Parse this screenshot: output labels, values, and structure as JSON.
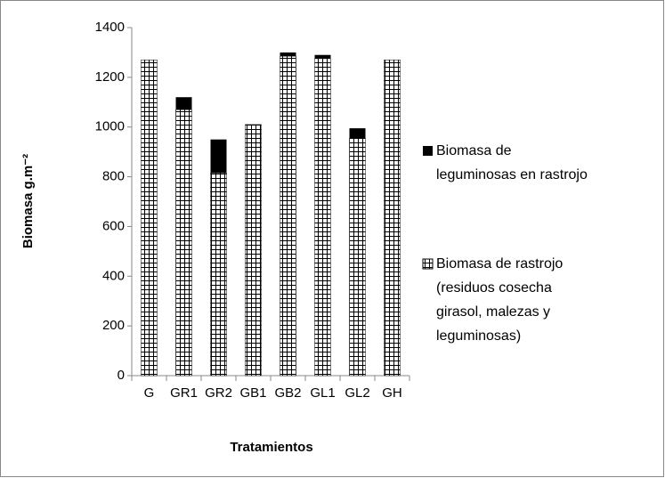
{
  "chart_data": {
    "type": "stacked_bar",
    "categories": [
      "G",
      "GR1",
      "GR2",
      "GB1",
      "GB2",
      "GL1",
      "GL2",
      "GH"
    ],
    "series": [
      {
        "name": "Biomasa de rastrojo\n(residuos cosecha\ngirasol, malezas y\nleguminosas)",
        "color": "#ffffff",
        "pattern": "grid",
        "values": [
          1270,
          1070,
          815,
          1010,
          1285,
          1275,
          955,
          1270
        ]
      },
      {
        "name": "Biomasa de\nleguminosas en rastrojo",
        "color": "#000000",
        "values": [
          0,
          50,
          135,
          0,
          15,
          15,
          40,
          0
        ]
      }
    ],
    "ylim": [
      0,
      1400
    ],
    "yticks": [
      0,
      200,
      400,
      600,
      800,
      1000,
      1200,
      1400
    ],
    "xlabel": "Tratamientos",
    "ylabel": "Biomasa g.m⁻²",
    "legend": "right"
  }
}
